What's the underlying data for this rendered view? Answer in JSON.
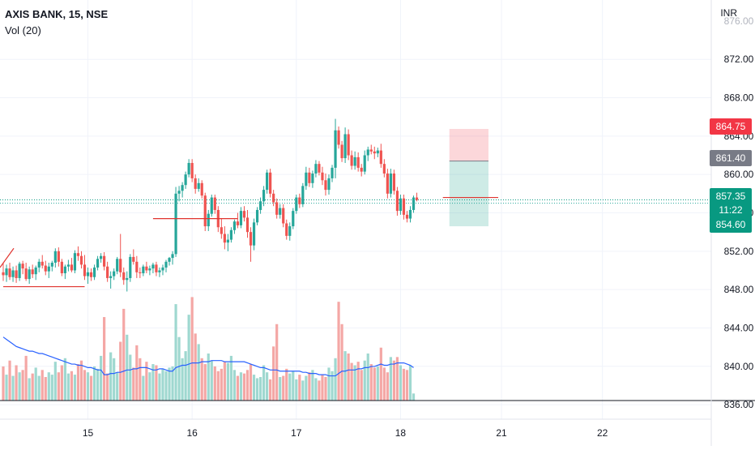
{
  "header": {
    "symbol": "AXIS BANK, 15, NSE",
    "volume_label": "Vol (20)",
    "currency": "INR"
  },
  "price_badges": {
    "stop": {
      "value": "864.75",
      "color": "#f23645"
    },
    "entry": {
      "value": "861.40",
      "color": "#787b86"
    },
    "last": {
      "value": "857.35",
      "color": "#089981"
    },
    "countdown": "11:22",
    "target": {
      "value": "854.60",
      "color": "#089981"
    }
  },
  "colors": {
    "up": "#26a69a",
    "down": "#ef5350",
    "vol_up": "#9fd8d0",
    "vol_down": "#f4a7a5",
    "ma": "#2962ff",
    "grid": "#f0f3fa"
  },
  "chart_data": {
    "type": "candlestick",
    "title": "AXIS BANK, 15, NSE",
    "price_unit": "INR",
    "ylim": [
      835.5,
      876.5
    ],
    "y_ticks": [
      836,
      840,
      844,
      848,
      852,
      856,
      860,
      864,
      868,
      872
    ],
    "y_tick_labels": [
      "836.00",
      "840.00",
      "844.00",
      "848.00",
      "852.00",
      "856.00",
      "860.00",
      "864.00",
      "868.00",
      "872.00"
    ],
    "x_tick_labels": [
      "15",
      "16",
      "17",
      "18",
      "21",
      "22"
    ],
    "candles_ohlc": [
      [
        849.8,
        850.8,
        848.9,
        849.5
      ],
      [
        849.5,
        850.6,
        848.8,
        850.2
      ],
      [
        850.2,
        850.8,
        849.0,
        849.3
      ],
      [
        849.3,
        850.4,
        848.8,
        850.0
      ],
      [
        850.0,
        850.5,
        848.7,
        849.2
      ],
      [
        849.2,
        850.9,
        848.9,
        850.7
      ],
      [
        850.7,
        851.0,
        849.6,
        850.2
      ],
      [
        850.2,
        850.8,
        848.9,
        849.1
      ],
      [
        849.1,
        850.4,
        848.6,
        850.1
      ],
      [
        850.1,
        850.6,
        849.2,
        849.6
      ],
      [
        849.6,
        850.5,
        849.0,
        850.3
      ],
      [
        850.3,
        851.2,
        849.8,
        850.9
      ],
      [
        850.9,
        851.6,
        850.2,
        850.5
      ],
      [
        850.5,
        851.0,
        849.5,
        849.9
      ],
      [
        849.9,
        850.8,
        849.2,
        850.4
      ],
      [
        850.4,
        851.0,
        849.9,
        850.8
      ],
      [
        850.8,
        852.3,
        850.3,
        852.0
      ],
      [
        852.0,
        852.4,
        850.4,
        850.9
      ],
      [
        850.9,
        851.2,
        849.4,
        849.7
      ],
      [
        849.7,
        850.6,
        849.1,
        850.4
      ],
      [
        850.4,
        851.1,
        849.9,
        850.6
      ],
      [
        850.6,
        851.3,
        849.8,
        850.0
      ],
      [
        850.0,
        852.1,
        849.7,
        851.8
      ],
      [
        851.8,
        852.5,
        851.0,
        851.5
      ],
      [
        851.5,
        852.0,
        850.2,
        850.6
      ],
      [
        850.6,
        851.6,
        849.0,
        849.4
      ],
      [
        849.4,
        850.3,
        848.6,
        849.8
      ],
      [
        849.8,
        850.2,
        848.9,
        849.3
      ],
      [
        849.3,
        850.6,
        849.0,
        850.3
      ],
      [
        850.3,
        851.5,
        850.0,
        851.2
      ],
      [
        851.2,
        851.8,
        850.8,
        851.5
      ],
      [
        851.5,
        851.9,
        850.0,
        850.4
      ],
      [
        850.4,
        850.9,
        848.8,
        849.2
      ],
      [
        849.2,
        849.9,
        848.1,
        849.4
      ],
      [
        849.4,
        850.2,
        849.0,
        849.9
      ],
      [
        849.9,
        851.4,
        849.6,
        851.2
      ],
      [
        851.2,
        853.8,
        849.3,
        849.8
      ],
      [
        849.8,
        850.3,
        848.5,
        849.0
      ],
      [
        849.0,
        849.9,
        847.8,
        849.2
      ],
      [
        849.2,
        851.7,
        848.8,
        851.4
      ],
      [
        851.4,
        852.2,
        850.6,
        850.9
      ],
      [
        850.9,
        851.5,
        849.2,
        849.8
      ],
      [
        849.8,
        850.3,
        849.2,
        849.7
      ],
      [
        849.7,
        850.6,
        849.4,
        850.4
      ],
      [
        850.4,
        850.9,
        849.7,
        850.0
      ],
      [
        850.0,
        850.5,
        849.5,
        850.2
      ],
      [
        850.2,
        850.8,
        849.7,
        850.6
      ],
      [
        850.6,
        850.9,
        849.4,
        849.8
      ],
      [
        849.8,
        850.3,
        849.3,
        850.0
      ],
      [
        850.0,
        850.6,
        849.5,
        850.3
      ],
      [
        850.3,
        851.1,
        849.8,
        850.9
      ],
      [
        850.9,
        851.4,
        850.5,
        851.3
      ],
      [
        851.3,
        852.0,
        850.6,
        851.7
      ],
      [
        851.7,
        858.7,
        851.4,
        858.0
      ],
      [
        858.0,
        858.8,
        857.2,
        858.3
      ],
      [
        858.3,
        859.2,
        857.6,
        858.9
      ],
      [
        858.9,
        860.3,
        858.5,
        860.0
      ],
      [
        860.0,
        861.6,
        859.7,
        861.2
      ],
      [
        861.2,
        861.6,
        859.2,
        859.6
      ],
      [
        859.6,
        860.0,
        858.0,
        858.5
      ],
      [
        858.5,
        859.6,
        858.2,
        859.1
      ],
      [
        859.1,
        859.4,
        857.5,
        857.8
      ],
      [
        857.8,
        858.1,
        854.1,
        854.6
      ],
      [
        854.6,
        856.3,
        854.1,
        855.9
      ],
      [
        855.9,
        857.9,
        855.6,
        857.6
      ],
      [
        857.6,
        857.9,
        855.9,
        856.3
      ],
      [
        856.3,
        856.7,
        854.0,
        854.5
      ],
      [
        854.5,
        855.4,
        853.3,
        853.8
      ],
      [
        853.8,
        854.6,
        852.2,
        852.9
      ],
      [
        852.9,
        853.8,
        852.0,
        853.2
      ],
      [
        853.2,
        854.5,
        852.9,
        854.2
      ],
      [
        854.2,
        855.3,
        853.8,
        855.1
      ],
      [
        855.1,
        856.0,
        854.4,
        854.7
      ],
      [
        854.7,
        856.6,
        854.4,
        856.2
      ],
      [
        856.2,
        856.7,
        855.1,
        855.5
      ],
      [
        855.5,
        856.3,
        853.4,
        854.0
      ],
      [
        854.0,
        854.5,
        850.9,
        852.6
      ],
      [
        852.6,
        855.4,
        852.1,
        855.0
      ],
      [
        855.0,
        856.6,
        854.7,
        856.3
      ],
      [
        856.3,
        857.6,
        855.9,
        857.2
      ],
      [
        857.2,
        858.8,
        856.7,
        858.4
      ],
      [
        858.4,
        860.5,
        858.0,
        860.2
      ],
      [
        860.2,
        860.6,
        857.6,
        858.0
      ],
      [
        858.0,
        858.4,
        856.7,
        857.1
      ],
      [
        857.1,
        857.5,
        855.4,
        855.8
      ],
      [
        855.8,
        856.9,
        855.4,
        856.5
      ],
      [
        856.5,
        856.9,
        854.5,
        854.9
      ],
      [
        854.9,
        855.3,
        853.2,
        853.6
      ],
      [
        853.6,
        855.0,
        853.1,
        854.6
      ],
      [
        854.6,
        856.5,
        854.3,
        856.2
      ],
      [
        856.2,
        857.9,
        855.9,
        857.6
      ],
      [
        857.6,
        858.0,
        856.5,
        856.9
      ],
      [
        856.9,
        859.1,
        856.6,
        858.8
      ],
      [
        858.8,
        860.8,
        858.4,
        860.2
      ],
      [
        860.2,
        860.7,
        858.7,
        859.1
      ],
      [
        859.1,
        860.4,
        858.6,
        860.1
      ],
      [
        860.1,
        861.5,
        859.7,
        861.1
      ],
      [
        861.1,
        861.4,
        859.9,
        860.2
      ],
      [
        860.2,
        860.8,
        858.9,
        859.4
      ],
      [
        859.4,
        860.1,
        857.8,
        858.4
      ],
      [
        858.4,
        860.0,
        857.9,
        859.6
      ],
      [
        859.6,
        861.0,
        859.2,
        860.7
      ],
      [
        860.7,
        865.8,
        859.6,
        864.6
      ],
      [
        864.6,
        865.0,
        862.7,
        863.1
      ],
      [
        863.1,
        863.5,
        861.3,
        861.7
      ],
      [
        861.7,
        864.9,
        861.2,
        864.2
      ],
      [
        864.2,
        864.7,
        861.5,
        862.0
      ],
      [
        862.0,
        862.5,
        860.5,
        860.9
      ],
      [
        860.9,
        862.4,
        860.5,
        861.8
      ],
      [
        861.8,
        862.3,
        860.3,
        860.7
      ],
      [
        860.7,
        861.1,
        859.8,
        860.3
      ],
      [
        860.3,
        862.5,
        860.0,
        862.0
      ],
      [
        862.0,
        862.9,
        861.4,
        862.6
      ],
      [
        862.6,
        863.1,
        862.1,
        862.4
      ],
      [
        862.4,
        862.9,
        861.6,
        862.2
      ],
      [
        862.2,
        862.8,
        861.8,
        862.5
      ],
      [
        862.5,
        863.2,
        860.7,
        861.1
      ],
      [
        861.1,
        861.6,
        859.7,
        860.1
      ],
      [
        860.1,
        860.6,
        857.5,
        858.0
      ],
      [
        858.0,
        860.6,
        857.6,
        860.1
      ],
      [
        860.1,
        860.5,
        857.9,
        858.3
      ],
      [
        858.3,
        858.7,
        855.7,
        856.2
      ],
      [
        856.2,
        857.9,
        855.8,
        857.5
      ],
      [
        857.5,
        857.9,
        855.3,
        855.8
      ],
      [
        855.8,
        856.2,
        855.0,
        855.4
      ],
      [
        855.4,
        856.7,
        855.0,
        856.3
      ],
      [
        856.3,
        857.8,
        856.0,
        857.6
      ],
      [
        857.6,
        858.1,
        857.2,
        857.35
      ]
    ],
    "volume_series": {
      "name": "Vol (20)",
      "values": [
        2.9,
        2.2,
        3.4,
        2.1,
        3.0,
        2.4,
        2.6,
        3.8,
        1.9,
        2.3,
        2.8,
        2.1,
        2.6,
        2.0,
        2.4,
        2.2,
        3.3,
        2.4,
        3.0,
        3.6,
        2.3,
        2.5,
        2.2,
        3.1,
        3.4,
        2.6,
        2.4,
        2.1,
        2.9,
        2.7,
        3.8,
        7.1,
        2.3,
        4.1,
        3.6,
        2.4,
        5.0,
        7.8,
        5.6,
        3.9,
        2.8,
        4.7,
        3.6,
        2.1,
        3.3,
        2.4,
        3.1,
        3.0,
        2.3,
        2.7,
        2.5,
        2.8,
        2.9,
        8.2,
        5.4,
        3.6,
        4.2,
        7.3,
        8.8,
        5.7,
        4.8,
        3.6,
        3.1,
        4.0,
        3.4,
        2.9,
        2.5,
        2.7,
        3.3,
        3.2,
        3.8,
        2.6,
        2.1,
        2.4,
        2.3,
        2.6,
        3.1,
        2.2,
        1.9,
        2.0,
        3.0,
        2.4,
        1.8,
        4.6,
        6.5,
        2.0,
        2.1,
        2.7,
        2.3,
        2.5,
        1.8,
        2.2,
        1.7,
        2.1,
        2.4,
        2.6,
        1.9,
        1.7,
        2.2,
        2.0,
        2.8,
        2.5,
        3.6,
        8.4,
        6.5,
        4.2,
        4.0,
        3.2,
        3.0,
        3.3,
        2.6,
        3.4,
        4.0,
        3.1,
        2.8,
        2.9,
        4.5,
        2.8,
        2.4,
        3.7,
        3.4,
        3.7,
        3.0,
        2.7,
        2.6,
        3.0,
        0.6
      ],
      "ma_values": [
        5.4,
        5.2,
        5.0,
        4.8,
        4.6,
        4.5,
        4.4,
        4.3,
        4.2,
        4.2,
        4.1,
        4.0,
        4.0,
        3.9,
        3.8,
        3.7,
        3.6,
        3.5,
        3.4,
        3.3,
        3.2,
        3.1,
        3.1,
        3.0,
        3.0,
        2.9,
        2.8,
        2.8,
        2.7,
        2.6,
        2.6,
        2.2,
        2.2,
        2.3,
        2.3,
        2.4,
        2.4,
        2.5,
        2.6,
        2.6,
        2.7,
        2.7,
        2.8,
        2.8,
        2.8,
        2.7,
        2.6,
        2.6,
        2.7,
        2.7,
        2.6,
        2.5,
        2.5,
        2.8,
        2.9,
        3.0,
        3.0,
        3.1,
        3.2,
        3.2,
        3.2,
        3.3,
        3.3,
        3.3,
        3.4,
        3.4,
        3.4,
        3.4,
        3.3,
        3.3,
        3.3,
        3.3,
        3.3,
        3.3,
        3.3,
        3.2,
        3.1,
        3.0,
        2.9,
        2.8,
        2.8,
        2.7,
        2.6,
        2.6,
        2.6,
        2.5,
        2.5,
        2.5,
        2.5,
        2.5,
        2.5,
        2.5,
        2.4,
        2.4,
        2.3,
        2.3,
        2.3,
        2.2,
        2.2,
        2.2,
        2.1,
        2.1,
        2.1,
        2.3,
        2.5,
        2.5,
        2.6,
        2.6,
        2.6,
        2.7,
        2.7,
        2.8,
        2.8,
        2.9,
        2.9,
        3.0,
        3.1,
        3.0,
        3.0,
        3.1,
        3.1,
        3.2,
        3.2,
        3.2,
        3.1,
        3.0,
        2.8
      ]
    },
    "date_labels": [
      {
        "label": "15",
        "index": 26
      },
      {
        "label": "16",
        "index": 58
      },
      {
        "label": "17",
        "index": 90
      },
      {
        "label": "18",
        "index": 122
      },
      {
        "label": "21",
        "index": 153
      },
      {
        "label": "22",
        "index": 184
      }
    ],
    "position_tool": {
      "start_index": 137,
      "end_index": 149,
      "stop": 864.75,
      "entry": 861.4,
      "target": 854.6
    },
    "support_lines": [
      {
        "start_index": 0,
        "end_index": 25,
        "price": 848.3
      },
      {
        "start_index": 46,
        "end_index": 72,
        "price": 855.4
      },
      {
        "start_index": 135,
        "end_index": 152,
        "price": 857.6
      }
    ],
    "reference_lines": [
      857.35,
      857.0
    ]
  }
}
